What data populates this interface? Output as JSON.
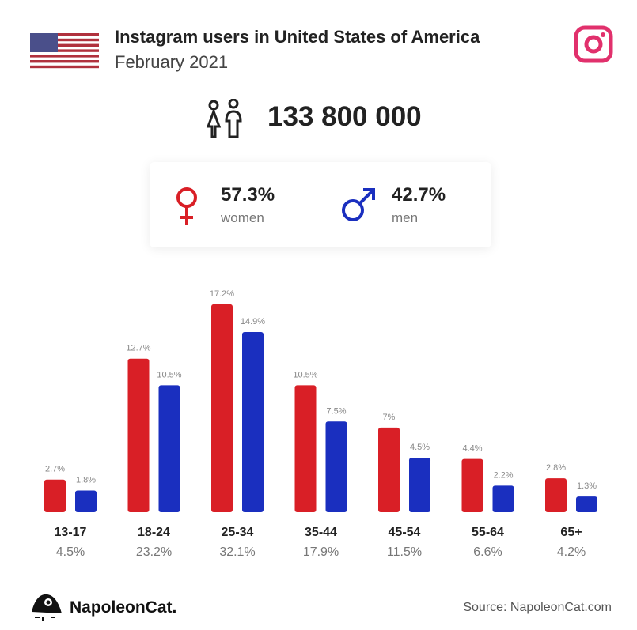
{
  "header": {
    "title": "Instagram users in United States of America",
    "subtitle": "February 2021",
    "flag_icon": "us-flag-icon",
    "platform_icon": "instagram-icon",
    "platform_color": "#e1306c"
  },
  "total": {
    "icon": "people-icon",
    "value": "133 800 000"
  },
  "gender": {
    "women": {
      "pct": "57.3%",
      "label": "women",
      "color": "#d91f26"
    },
    "men": {
      "pct": "42.7%",
      "label": "men",
      "color": "#1a2fbf"
    }
  },
  "chart_data": {
    "type": "bar",
    "categories": [
      "13-17",
      "18-24",
      "25-34",
      "35-44",
      "45-54",
      "55-64",
      "65+"
    ],
    "totals": [
      "4.5%",
      "23.2%",
      "32.1%",
      "17.9%",
      "11.5%",
      "6.6%",
      "4.2%"
    ],
    "series": [
      {
        "values": [
          2.7,
          12.7,
          17.2,
          10.5,
          7,
          4.4,
          2.8
        ],
        "labels": [
          "2.7%",
          "12.7%",
          "17.2%",
          "10.5%",
          "7%",
          "4.4%",
          "2.8%"
        ],
        "color": "#d91f26"
      },
      {
        "values": [
          1.8,
          10.5,
          14.9,
          7.5,
          4.5,
          2.2,
          1.3
        ],
        "labels": [
          "1.8%",
          "10.5%",
          "14.9%",
          "7.5%",
          "4.5%",
          "2.2%",
          "1.3%"
        ],
        "color": "#1a2fbf"
      }
    ]
  },
  "footer": {
    "brand": "NapoleonCat.",
    "source": "Source: NapoleonCat.com"
  }
}
